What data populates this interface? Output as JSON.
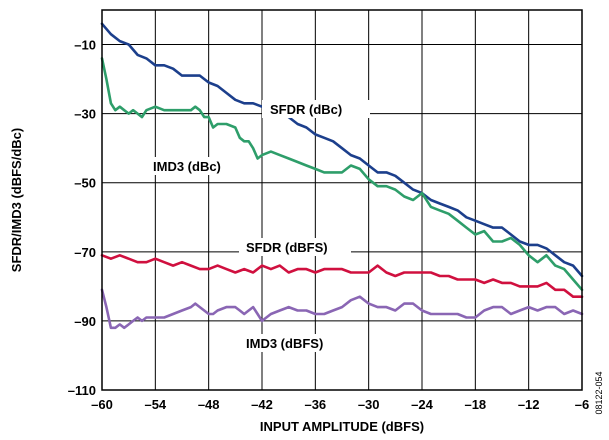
{
  "chart_data": {
    "type": "line",
    "xlabel": "INPUT AMPLITUDE (dBFS)",
    "ylabel": "SFDR/IMD3 (dBFS/dBc)",
    "xlim": [
      -60,
      -6
    ],
    "ylim": [
      -110,
      0
    ],
    "x_ticks": [
      -60,
      -54,
      -48,
      -42,
      -36,
      -30,
      -24,
      -18,
      -12,
      -6
    ],
    "y_ticks": [
      -10,
      -30,
      -50,
      -70,
      -90,
      -110
    ],
    "x_tick_labels": [
      "–60",
      "–54",
      "–48",
      "–42",
      "–36",
      "–30",
      "–24",
      "–18",
      "–12",
      "–6"
    ],
    "y_tick_labels": [
      "–10",
      "–30",
      "–50",
      "–70",
      "–90",
      "–110"
    ],
    "grid": true,
    "figure_id": "08122-054",
    "series": [
      {
        "label": "SFDR (dBc)",
        "color": "#1c3f8c",
        "x": [
          -60,
          -59,
          -58,
          -57,
          -56,
          -55,
          -54,
          -53,
          -52,
          -51,
          -50,
          -49,
          -48,
          -47,
          -46,
          -45,
          -44,
          -43,
          -42,
          -41,
          -40,
          -39,
          -38,
          -37,
          -36,
          -35,
          -34,
          -33,
          -32,
          -31,
          -30,
          -29,
          -28,
          -27,
          -26,
          -25,
          -24,
          -23,
          -22,
          -21,
          -20,
          -19,
          -18,
          -17,
          -16,
          -15,
          -14,
          -13,
          -12,
          -11,
          -10,
          -9,
          -8,
          -7,
          -6
        ],
        "y": [
          -4,
          -7,
          -9,
          -10,
          -13,
          -14,
          -16,
          -16,
          -17,
          -19,
          -19,
          -19,
          -21,
          -22,
          -24,
          -26,
          -27,
          -27,
          -28,
          -30,
          -30,
          -31,
          -33,
          -34,
          -36,
          -37,
          -38,
          -40,
          -42,
          -43,
          -45,
          -47,
          -47,
          -48,
          -50,
          -52,
          -53,
          -55,
          -56,
          -57,
          -58,
          -60,
          -61,
          -62,
          -63,
          -63,
          -65,
          -67,
          -68,
          -68,
          -69,
          -71,
          -73,
          -74,
          -77
        ]
      },
      {
        "label": "IMD3 (dBc)",
        "color": "#2e9e6a",
        "x": [
          -60,
          -59.5,
          -59,
          -58.5,
          -58,
          -57.5,
          -57,
          -56.5,
          -56,
          -55.5,
          -55,
          -54,
          -53,
          -52,
          -51,
          -50,
          -49.5,
          -49,
          -48.5,
          -48,
          -47.5,
          -47,
          -46,
          -45,
          -44.5,
          -44,
          -43.5,
          -43,
          -42.5,
          -42,
          -41,
          -40,
          -39,
          -38,
          -37,
          -36,
          -35,
          -34,
          -33,
          -32,
          -31,
          -30,
          -29,
          -28,
          -27,
          -26,
          -25,
          -24,
          -23,
          -22,
          -21,
          -20,
          -19,
          -18,
          -17,
          -16,
          -15,
          -14,
          -13,
          -12,
          -11,
          -10,
          -9,
          -8,
          -7,
          -6
        ],
        "y": [
          -14,
          -20,
          -27,
          -29,
          -28,
          -29,
          -30,
          -29,
          -30,
          -31,
          -29,
          -28,
          -29,
          -29,
          -29,
          -29,
          -28,
          -29,
          -31,
          -31,
          -34,
          -33,
          -33,
          -34,
          -37,
          -38,
          -38,
          -40,
          -43,
          -42,
          -41,
          -42,
          -43,
          -44,
          -45,
          -46,
          -47,
          -47,
          -47,
          -45,
          -46,
          -49,
          -51,
          -51,
          -52,
          -54,
          -55,
          -53,
          -57,
          -58,
          -59,
          -61,
          -63,
          -65,
          -64,
          -67,
          -67,
          -66,
          -68,
          -71,
          -73,
          -71,
          -74,
          -75,
          -78,
          -81
        ]
      },
      {
        "label": "SFDR (dBFS)",
        "color": "#d0103f",
        "x": [
          -60,
          -59,
          -58,
          -57,
          -56,
          -55,
          -54,
          -53,
          -52,
          -51,
          -50,
          -49,
          -48,
          -47,
          -46,
          -45,
          -44,
          -43,
          -42,
          -41,
          -40,
          -39,
          -38,
          -37,
          -36,
          -35,
          -34,
          -33,
          -32,
          -31,
          -30,
          -29,
          -28,
          -27,
          -26,
          -25,
          -24,
          -23,
          -22,
          -21,
          -20,
          -19,
          -18,
          -17,
          -16,
          -15,
          -14,
          -13,
          -12,
          -11,
          -10,
          -9,
          -8,
          -7,
          -6
        ],
        "y": [
          -71,
          -72,
          -71,
          -72,
          -73,
          -73,
          -72,
          -73,
          -74,
          -73,
          -74,
          -75,
          -75,
          -74,
          -75,
          -76,
          -75,
          -76,
          -74,
          -75,
          -74,
          -76,
          -75,
          -75,
          -76,
          -75,
          -75,
          -75,
          -76,
          -76,
          -76,
          -74,
          -76,
          -77,
          -76,
          -76,
          -76,
          -76,
          -77,
          -77,
          -78,
          -78,
          -78,
          -79,
          -78,
          -79,
          -79,
          -80,
          -80,
          -80,
          -79,
          -81,
          -81,
          -83,
          -83
        ]
      },
      {
        "label": "IMD3 (dBFS)",
        "color": "#8a66b4",
        "x": [
          -60,
          -59.5,
          -59,
          -58.5,
          -58,
          -57.5,
          -57,
          -56.5,
          -56,
          -55.5,
          -55,
          -54,
          -53,
          -52,
          -51,
          -50,
          -49.5,
          -49,
          -48.5,
          -48,
          -47.5,
          -47,
          -46,
          -45,
          -44.5,
          -44,
          -43.5,
          -43,
          -42.5,
          -42,
          -41,
          -40,
          -39,
          -38,
          -37,
          -36,
          -35,
          -34,
          -33,
          -32,
          -31,
          -30,
          -29,
          -28,
          -27,
          -26,
          -25,
          -24,
          -23,
          -22,
          -21,
          -20,
          -19,
          -18,
          -17,
          -16,
          -15,
          -14,
          -13,
          -12,
          -11,
          -10,
          -9,
          -8,
          -7,
          -6
        ],
        "y": [
          -81,
          -86,
          -92,
          -92,
          -91,
          -92,
          -91,
          -90,
          -89,
          -90,
          -89,
          -89,
          -89,
          -88,
          -87,
          -86,
          -85,
          -86,
          -87,
          -88,
          -88,
          -87,
          -86,
          -86,
          -87,
          -88,
          -87,
          -86,
          -88,
          -90,
          -88,
          -87,
          -86,
          -87,
          -87,
          -88,
          -88,
          -87,
          -86,
          -84,
          -83,
          -85,
          -86,
          -86,
          -87,
          -85,
          -85,
          -87,
          -88,
          -88,
          -88,
          -88,
          -89,
          -89,
          -87,
          -86,
          -86,
          -88,
          -87,
          -86,
          -87,
          -86,
          -86,
          -88,
          -87,
          -88
        ]
      }
    ]
  }
}
